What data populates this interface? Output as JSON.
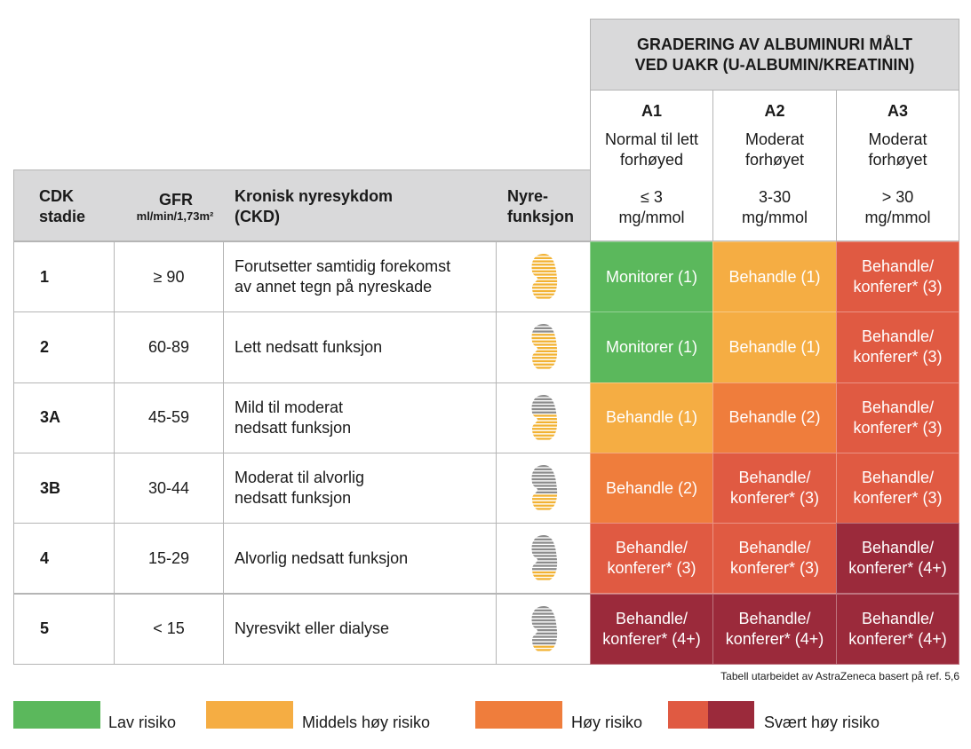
{
  "top_header": "GRADERING AV ALBUMINURI MÅLT\nVED UAKR (U-ALBUMIN/KREATININ)",
  "albumin_cols": [
    {
      "code": "A1",
      "desc": "Normal til lett\nforhøyed",
      "range": "≤ 3\nmg/mmol"
    },
    {
      "code": "A2",
      "desc": "Moderat\nforhøyet",
      "range": "3-30\nmg/mmol"
    },
    {
      "code": "A3",
      "desc": "Moderat\nforhøyet",
      "range": "> 30\nmg/mmol"
    }
  ],
  "left_header": {
    "stage": "CDK\nstadie",
    "gfr": "GFR",
    "gfr_unit": "ml/min/1,73m²",
    "ckd": "Kronisk nyresykdom\n(CKD)",
    "function": "Nyre-\nfunksjon"
  },
  "rows": [
    {
      "stage": "1",
      "gfr": "≥ 90",
      "desc": "Forutsetter samtidig forekomst\nav annet tegn på nyreskade",
      "kidney_fill": 1.0,
      "cells": [
        {
          "text": "Monitorer (1)",
          "risk": "green"
        },
        {
          "text": "Behandle (1)",
          "risk": "yellow"
        },
        {
          "text": "Behandle/\nkonferer* (3)",
          "risk": "red"
        }
      ]
    },
    {
      "stage": "2",
      "gfr": "60-89",
      "desc": "Lett nedsatt funksjon",
      "kidney_fill": 0.75,
      "cells": [
        {
          "text": "Monitorer (1)",
          "risk": "green"
        },
        {
          "text": "Behandle (1)",
          "risk": "yellow"
        },
        {
          "text": "Behandle/\nkonferer* (3)",
          "risk": "red"
        }
      ]
    },
    {
      "stage": "3A",
      "gfr": "45-59",
      "desc": "Mild til moderat\nnedsatt funksjon",
      "kidney_fill": 0.55,
      "cells": [
        {
          "text": "Behandle (1)",
          "risk": "yellow"
        },
        {
          "text": "Behandle (2)",
          "risk": "orange"
        },
        {
          "text": "Behandle/\nkonferer* (3)",
          "risk": "red"
        }
      ]
    },
    {
      "stage": "3B",
      "gfr": "30-44",
      "desc": "Moderat til alvorlig\nnedsatt funksjon",
      "kidney_fill": 0.35,
      "cells": [
        {
          "text": "Behandle (2)",
          "risk": "orange"
        },
        {
          "text": "Behandle/\nkonferer* (3)",
          "risk": "red"
        },
        {
          "text": "Behandle/\nkonferer* (3)",
          "risk": "red"
        }
      ]
    },
    {
      "stage": "4",
      "gfr": "15-29",
      "desc": "Alvorlig nedsatt funksjon",
      "kidney_fill": 0.2,
      "cells": [
        {
          "text": "Behandle/\nkonferer* (3)",
          "risk": "red"
        },
        {
          "text": "Behandle/\nkonferer* (3)",
          "risk": "red"
        },
        {
          "text": "Behandle/\nkonferer* (4+)",
          "risk": "darkred"
        }
      ]
    },
    {
      "stage": "5",
      "gfr": "< 15",
      "desc": "Nyresvikt eller dialyse",
      "kidney_fill": 0.12,
      "cells": [
        {
          "text": "Behandle/\nkonferer* (4+)",
          "risk": "darkred"
        },
        {
          "text": "Behandle/\nkonferer* (4+)",
          "risk": "darkred"
        },
        {
          "text": "Behandle/\nkonferer* (4+)",
          "risk": "darkred"
        }
      ]
    }
  ],
  "footnote": "Tabell utarbeidet av AstraZeneca basert på ref. 5,6",
  "legend": [
    {
      "label": "Lav risiko",
      "colors": [
        "#5bb85c"
      ]
    },
    {
      "label": "Middels høy risiko",
      "colors": [
        "#f5ad43"
      ]
    },
    {
      "label": "Høy risiko",
      "colors": [
        "#ef7d3c"
      ]
    },
    {
      "label": "Svært høy risiko",
      "colors": [
        "#e05a42",
        "#9b2a3b"
      ]
    }
  ],
  "colors": {
    "kidney_yellow": "#f2b233",
    "kidney_gray": "#8c8c8c"
  }
}
